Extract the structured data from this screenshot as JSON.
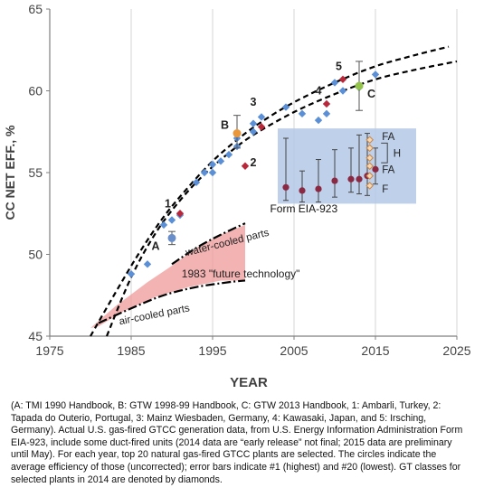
{
  "chart_data": {
    "type": "scatter",
    "ylabel": "CC NET EFF., %",
    "xlabel": "YEAR",
    "xlim": [
      1975,
      2025
    ],
    "ylim": [
      45,
      65
    ],
    "x_ticks": [
      "1975",
      "1985",
      "1995",
      "2005",
      "2015",
      "2025"
    ],
    "y_ticks": [
      "45",
      "50",
      "55",
      "60",
      "65"
    ],
    "grid": "vertical",
    "trend_lower": [
      [
        1982,
        45
      ],
      [
        1985,
        48.6
      ],
      [
        1988,
        51.3
      ],
      [
        1991,
        53.3
      ],
      [
        1994,
        54.9
      ],
      [
        1997,
        56.2
      ],
      [
        2000,
        57.3
      ],
      [
        2005,
        58.7
      ],
      [
        2010,
        59.8
      ],
      [
        2015,
        60.7
      ],
      [
        2020,
        61.3
      ],
      [
        2025,
        61.8
      ]
    ],
    "trend_upper": [
      [
        1980,
        45
      ],
      [
        1983,
        47.6
      ],
      [
        1986,
        50.1
      ],
      [
        1989,
        52.3
      ],
      [
        1992,
        54.1
      ],
      [
        1995,
        55.7
      ],
      [
        1998,
        57.0
      ],
      [
        2001,
        58.1
      ],
      [
        2005,
        59.3
      ],
      [
        2010,
        60.5
      ],
      [
        2015,
        61.5
      ],
      [
        2020,
        62.2
      ],
      [
        2024,
        62.7
      ]
    ],
    "water_cooled_line": [
      [
        1990,
        49.4
      ],
      [
        1993,
        50.4
      ],
      [
        1996,
        51.2
      ],
      [
        1999,
        51.9
      ]
    ],
    "air_cooled_line": [
      [
        1981,
        45.8
      ],
      [
        1985,
        46.7
      ],
      [
        1989,
        47.5
      ],
      [
        1993,
        48.0
      ],
      [
        1997,
        48.3
      ],
      [
        1999,
        48.4
      ]
    ],
    "band_polygon": [
      [
        1980,
        45.5
      ],
      [
        1983,
        46.8
      ],
      [
        1987,
        48.3
      ],
      [
        1990,
        49.3
      ],
      [
        1993,
        50.4
      ],
      [
        1996,
        51.2
      ],
      [
        1999,
        51.8
      ],
      [
        1999,
        48.4
      ],
      [
        1996,
        48.4
      ],
      [
        1992,
        48.0
      ],
      [
        1988,
        47.4
      ],
      [
        1984,
        46.5
      ],
      [
        1981,
        45.6
      ]
    ],
    "diamonds": [
      [
        1985,
        48.8
      ],
      [
        1987,
        49.4
      ],
      [
        1989,
        51.8
      ],
      [
        1990,
        52.1
      ],
      [
        1991,
        52.4
      ],
      [
        1993,
        54.4
      ],
      [
        1994,
        55.0
      ],
      [
        1995,
        55.0
      ],
      [
        1995,
        55.5
      ],
      [
        1996,
        55.7
      ],
      [
        1997,
        56.1
      ],
      [
        1998,
        56.6
      ],
      [
        1998,
        57.1
      ],
      [
        2000,
        57.5
      ],
      [
        2000,
        58.0
      ],
      [
        2001,
        58.4
      ],
      [
        2004,
        59.0
      ],
      [
        2006,
        58.6
      ],
      [
        2008,
        58.2
      ],
      [
        2009,
        58.6
      ],
      [
        2010,
        60.5
      ],
      [
        2011,
        60.0
      ],
      [
        2013,
        60.2
      ],
      [
        2015,
        61.0
      ]
    ],
    "red_diamonds": [
      [
        1991,
        52.5
      ],
      [
        1999,
        55.4
      ],
      [
        2001,
        57.8
      ],
      [
        2009,
        59.2
      ],
      [
        2011,
        60.7
      ]
    ],
    "handbook_points": [
      {
        "label": "A",
        "x": 1990,
        "y": 51.0,
        "err": [
          50.6,
          51.4
        ],
        "color": "#6a8ec9"
      },
      {
        "label": "B",
        "x": 1998,
        "y": 57.4,
        "err": [
          56.5,
          58.5
        ],
        "color": "#e8983a"
      },
      {
        "label": "C",
        "x": 2013,
        "y": 60.3,
        "err": [
          58.8,
          61.8
        ],
        "color": "#94c34a"
      }
    ],
    "annotations": [
      {
        "text": "1",
        "x": 1989.5,
        "y": 53.1
      },
      {
        "text": "2",
        "x": 2000.0,
        "y": 55.6
      },
      {
        "text": "3",
        "x": 2000.0,
        "y": 59.3
      },
      {
        "text": "4",
        "x": 2008.0,
        "y": 60.0
      },
      {
        "text": "5",
        "x": 2010.5,
        "y": 61.5
      },
      {
        "text": "A",
        "x": 1988.0,
        "y": 50.5
      },
      {
        "text": "B",
        "x": 1996.5,
        "y": 57.9
      },
      {
        "text": "C",
        "x": 2014.5,
        "y": 59.8
      }
    ],
    "region_labels": {
      "water": "water-cooled parts",
      "future": "1983 \"future technology\"",
      "air": "air-cooled parts"
    },
    "eia": {
      "label": "Form  EIA-923",
      "points": [
        [
          2004,
          54.1,
          57.1,
          53.3
        ],
        [
          2006,
          53.9,
          55.1,
          53.2
        ],
        [
          2008,
          54.0,
          55.8,
          53.2
        ],
        [
          2010,
          54.5,
          56.4,
          53.5
        ],
        [
          2012,
          54.6,
          56.5,
          53.8
        ],
        [
          2013,
          54.6,
          57.3,
          53.7
        ],
        [
          2014,
          54.8,
          57.4,
          53.6
        ],
        [
          2015,
          55.2,
          56.5,
          54.3
        ]
      ],
      "class_markers": [
        [
          2014.3,
          57.0
        ],
        [
          2014.3,
          56.5
        ],
        [
          2014.3,
          55.9
        ],
        [
          2014.3,
          55.4
        ],
        [
          2014.3,
          54.8
        ],
        [
          2014.3,
          54.2
        ]
      ],
      "class_labels": [
        {
          "text": "FA",
          "x": 2015.8,
          "y": 57.2
        },
        {
          "text": "H",
          "x": 2017.2,
          "y": 56.2
        },
        {
          "text": "FA",
          "x": 2015.8,
          "y": 55.2
        },
        {
          "text": "F",
          "x": 2015.8,
          "y": 54.0
        }
      ]
    }
  },
  "caption": {
    "lines": [
      "(A: TMI 1990 Handbook, B: GTW 1998-99 Handbook, C: GTW 2013 Handbook, 1: Ambarli, Turkey, 2:",
      "Tapada do Outerio, Portugal, 3: Mainz Wiesbaden, Germany, 4: Kawasaki, Japan, and 5: Irsching,",
      "Germany). Actual U.S. gas-fired GTCC generation data, from U.S. Energy Information Administration Form",
      "EIA-923, include some duct-fired units (2014 data are “early release” not final; 2015 data are preliminary",
      "until May). For each year, top 20 natural gas-fired GTCC plants are selected. The circles indicate the",
      "average efficiency of those (uncorrected); error bars indicate #1 (highest) and #20 (lowest). GT classes for",
      "selected plants in 2014 are denoted by diamonds."
    ]
  },
  "colors": {
    "diamond": "#5b8fd6",
    "red": "#b8283a",
    "band": "#ef9a9a",
    "eia_box": "#b4c8e6",
    "eia_point": "#8b2942",
    "class_marker": "#c7864a"
  }
}
